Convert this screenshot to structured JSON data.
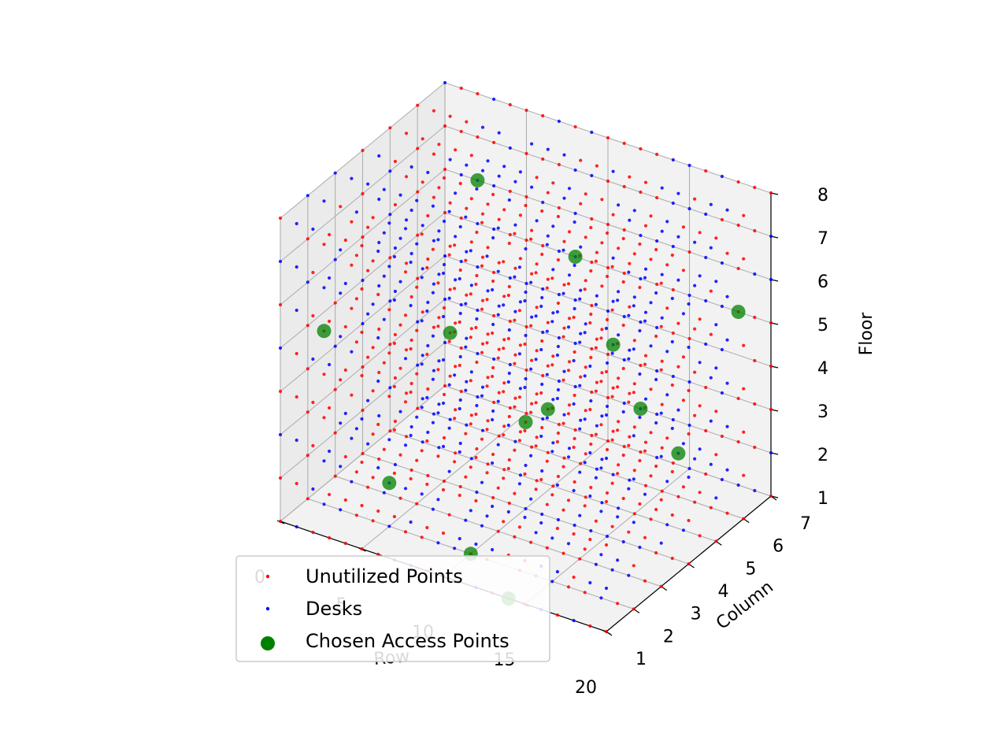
{
  "chart_data": {
    "type": "scatter",
    "projection": "3d",
    "title": "",
    "axes": {
      "x": {
        "label": "Row",
        "ticks": [
          0,
          5,
          10,
          15,
          20
        ],
        "range": [
          0,
          20
        ]
      },
      "y": {
        "label": "Column",
        "ticks": [
          1,
          2,
          3,
          4,
          5,
          6,
          7
        ],
        "range": [
          1,
          7
        ]
      },
      "z": {
        "label": "Floor",
        "ticks": [
          1,
          2,
          3,
          4,
          5,
          6,
          7,
          8
        ],
        "range": [
          1,
          8
        ]
      }
    },
    "grid": true,
    "legend": {
      "placement": "lower-left",
      "entries": [
        "Unutilized Points",
        "Desks",
        "Chosen Access Points"
      ]
    },
    "series": [
      {
        "name": "Unutilized Points",
        "color": "#ff0000",
        "marker": "small-dot",
        "description_grid": {
          "rows": [
            0,
            20
          ],
          "columns": [
            1,
            7
          ],
          "floors": [
            1,
            8
          ]
        }
      },
      {
        "name": "Desks",
        "color": "#0000ff",
        "marker": "small-dot",
        "description_grid": {
          "rows": [
            0,
            20
          ],
          "columns": [
            1,
            7
          ],
          "floors": [
            1,
            8
          ]
        }
      },
      {
        "name": "Chosen Access Points",
        "color": "#008000",
        "marker": "large-dot",
        "points": [
          {
            "row": 14,
            "column": 1,
            "floor": 1
          },
          {
            "row": 10,
            "column": 2,
            "floor": 1
          },
          {
            "row": 5,
            "column": 2,
            "floor": 2
          },
          {
            "row": 1,
            "column": 2,
            "floor": 5
          },
          {
            "row": 10,
            "column": 4,
            "floor": 3
          },
          {
            "row": 16,
            "column": 6,
            "floor": 2
          },
          {
            "row": 8,
            "column": 6,
            "floor": 2
          },
          {
            "row": 12,
            "column": 6,
            "floor": 4
          },
          {
            "row": 2,
            "column": 6,
            "floor": 3
          },
          {
            "row": 2,
            "column": 7,
            "floor": 6
          },
          {
            "row": 8,
            "column": 7,
            "floor": 5
          },
          {
            "row": 18,
            "column": 7,
            "floor": 5
          },
          {
            "row": 12,
            "column": 7,
            "floor": 2
          }
        ]
      }
    ]
  }
}
